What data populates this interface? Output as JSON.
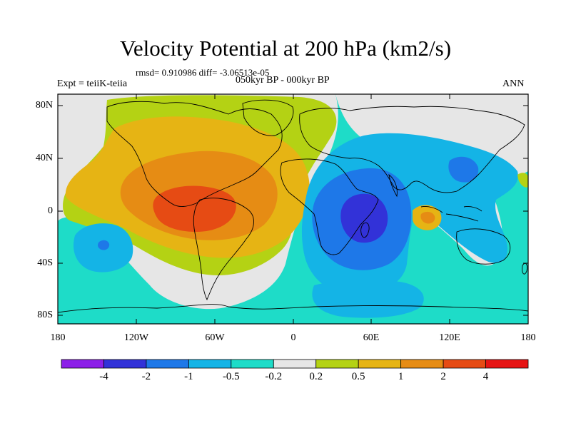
{
  "title": "Velocity Potential at 200 hPa (km2/s)",
  "stats_line": "rmsd= 0.910986 diff= -3.06513e-05",
  "left_label": "Expt = teiiK-teiia",
  "center_label": "050kyr BP - 000kyr BP",
  "right_label": "ANN",
  "lat_ticks": [
    "80N",
    "40N",
    "0",
    "40S",
    "80S"
  ],
  "lon_ticks": [
    "180",
    "120W",
    "60W",
    "0",
    "60E",
    "120E",
    "180"
  ],
  "colorbar": {
    "colors": [
      "#8c1fe8",
      "#3232d8",
      "#1e78e8",
      "#14b4e6",
      "#1edcc8",
      "#e6e6e6",
      "#b4d214",
      "#e6b414",
      "#e68c14",
      "#e64b14",
      "#e61414"
    ],
    "labels": [
      "-4",
      "-2",
      "-1",
      "-0.5",
      "-0.2",
      "0.2",
      "0.5",
      "1",
      "2",
      "4"
    ]
  }
}
